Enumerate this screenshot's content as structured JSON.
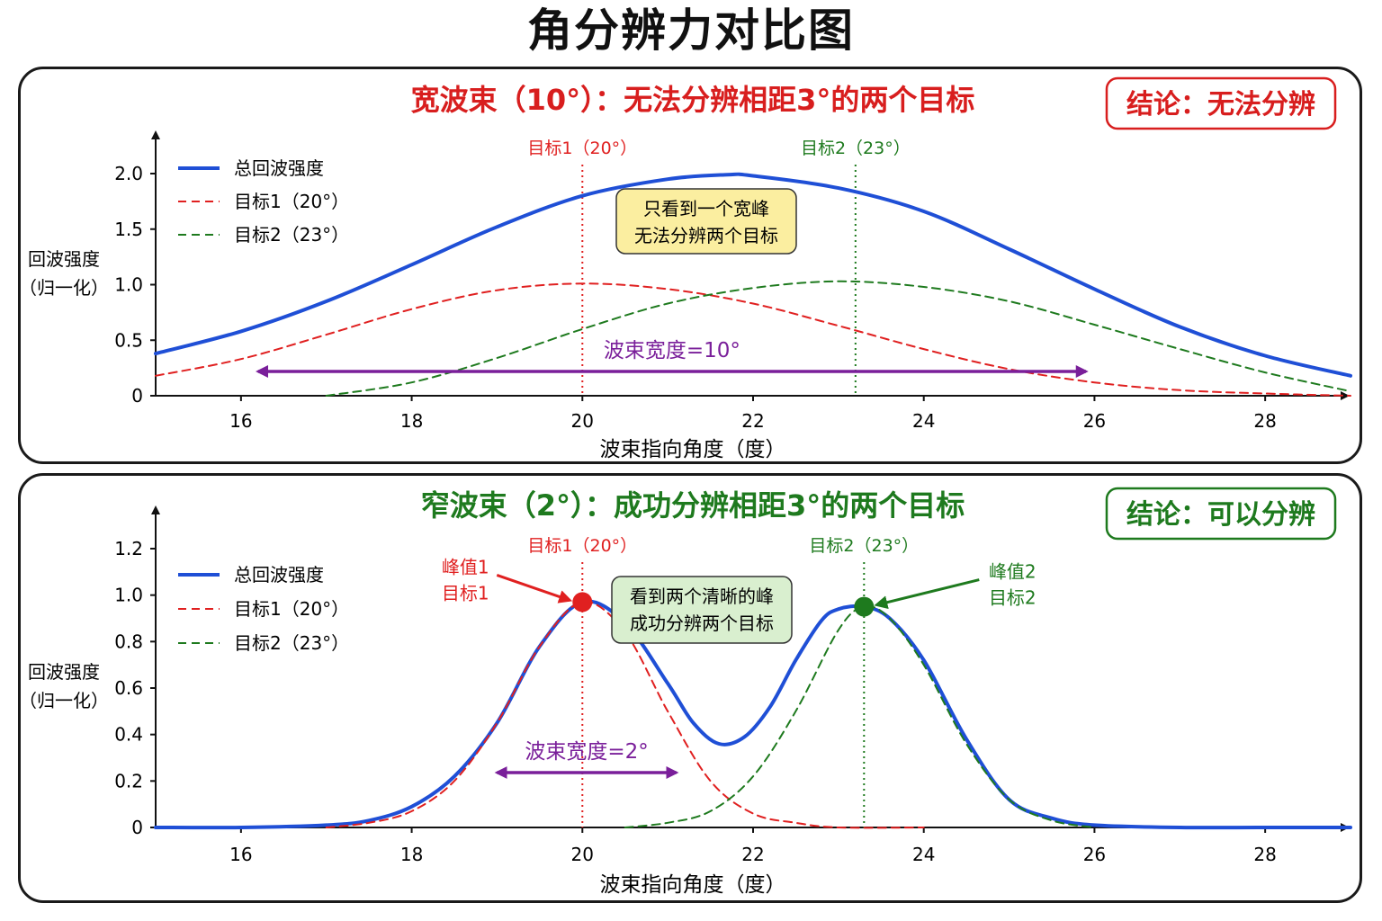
{
  "title": "角分辨力对比图",
  "colors": {
    "total": "#1f4fd6",
    "target1": "#e02020",
    "target2": "#1e7a1e",
    "beam": "#7a1f9a",
    "note_yellow": "#fbeea0",
    "note_green": "#d9efcf"
  },
  "panels": [
    {
      "id": "wide",
      "heading": "宽波束（10°）：无法分辨相距3°的两个目标",
      "heading_color": "#d81e1e",
      "conclusion": "结论：无法分辨",
      "conclusion_color": "#d81e1e",
      "marker1": "目标1（20°）",
      "marker2": "目标2（23°）",
      "note_lines": [
        "只看到一个宽峰",
        "无法分辨两个目标"
      ],
      "note_color": "#fbeea0",
      "beam_label": "波束宽度=10°",
      "peak_labels": [],
      "chart_data": {
        "type": "line",
        "xlabel": "波束指向角度（度）",
        "ylabel": "回波强度（归一化）",
        "xlim": [
          15,
          29
        ],
        "ylim": [
          0,
          2.0
        ],
        "xticks": [
          16,
          18,
          20,
          22,
          24,
          26,
          28
        ],
        "yticks": [
          0,
          0.5,
          1.0,
          1.5,
          2.0
        ],
        "ytick_labels": [
          "0",
          "0.5",
          "1.0",
          "1.5",
          "2.0"
        ],
        "target_lines": [
          20,
          23.2
        ],
        "beam_span": [
          16.2,
          25.9
        ],
        "legend_position": "top-left",
        "series": [
          {
            "name": "总回波强度",
            "style": "solid",
            "x": [
              15,
              16,
              17,
              18,
              19,
              20,
              21,
              21.7,
              22,
              23,
              24,
              25,
              26,
              27,
              28,
              29
            ],
            "y": [
              0.38,
              0.58,
              0.85,
              1.18,
              1.52,
              1.8,
              1.95,
              1.99,
              1.98,
              1.87,
              1.66,
              1.32,
              0.96,
              0.62,
              0.36,
              0.18
            ]
          },
          {
            "name": "目标1（20°）",
            "style": "dashed",
            "x": [
              15,
              16,
              17,
              18,
              19,
              20,
              21,
              22,
              23,
              24,
              25,
              26,
              27,
              28,
              29
            ],
            "y": [
              0.18,
              0.33,
              0.55,
              0.78,
              0.95,
              1.01,
              0.96,
              0.83,
              0.63,
              0.42,
              0.24,
              0.12,
              0.05,
              0.02,
              0.0
            ]
          },
          {
            "name": "目标2（23°）",
            "style": "dashed",
            "x": [
              17,
              18,
              19,
              20,
              21,
              22,
              23,
              24,
              25,
              26,
              27,
              28,
              29
            ],
            "y": [
              0.0,
              0.12,
              0.34,
              0.6,
              0.83,
              0.97,
              1.03,
              0.98,
              0.85,
              0.64,
              0.42,
              0.21,
              0.04
            ]
          }
        ]
      }
    },
    {
      "id": "narrow",
      "heading": "窄波束（2°）：成功分辨相距3°的两个目标",
      "heading_color": "#1e7a1e",
      "conclusion": "结论：可以分辨",
      "conclusion_color": "#1e7a1e",
      "marker1": "目标1（20°）",
      "marker2": "目标2（23°）",
      "note_lines": [
        "看到两个清晰的峰",
        "成功分辨两个目标"
      ],
      "note_color": "#d9efcf",
      "beam_label": "波束宽度=2°",
      "peak_labels": [
        {
          "lines": [
            "峰值1",
            "目标1"
          ],
          "color": "#e02020",
          "x": 20,
          "y": 0.97
        },
        {
          "lines": [
            "峰值2",
            "目标2"
          ],
          "color": "#1e7a1e",
          "x": 23.3,
          "y": 0.95
        }
      ],
      "chart_data": {
        "type": "line",
        "xlabel": "波束指向角度（度）",
        "ylabel": "回波强度（归一化）",
        "xlim": [
          15,
          29
        ],
        "ylim": [
          0,
          1.2
        ],
        "xticks": [
          16,
          18,
          20,
          22,
          24,
          26,
          28
        ],
        "yticks": [
          0,
          0.2,
          0.4,
          0.6,
          0.8,
          1.0,
          1.2
        ],
        "ytick_labels": [
          "0",
          "0.2",
          "0.4",
          "0.6",
          "0.8",
          "1.0",
          "1.2"
        ],
        "target_lines": [
          20,
          23.3
        ],
        "beam_span": [
          19.0,
          21.1
        ],
        "legend_position": "top-left",
        "series": [
          {
            "name": "总回波强度",
            "style": "solid",
            "x": [
              15,
              16,
              17,
              17.5,
              18,
              18.5,
              19,
              19.5,
              20,
              20.5,
              21,
              21.3,
              21.6,
              21.9,
              22.2,
              22.5,
              22.8,
              23.0,
              23.3,
              23.6,
              24,
              24.5,
              25,
              25.5,
              26,
              27,
              28,
              29
            ],
            "y": [
              0.0,
              0.0,
              0.01,
              0.03,
              0.09,
              0.22,
              0.45,
              0.78,
              0.97,
              0.88,
              0.62,
              0.45,
              0.36,
              0.39,
              0.52,
              0.72,
              0.89,
              0.94,
              0.95,
              0.9,
              0.72,
              0.38,
              0.12,
              0.04,
              0.01,
              0.0,
              0.0,
              0.0
            ]
          },
          {
            "name": "目标1（20°）",
            "style": "dashed",
            "x": [
              17,
              17.5,
              18,
              18.5,
              19,
              19.5,
              20,
              20.5,
              21,
              21.5,
              22,
              22.5,
              23,
              24
            ],
            "y": [
              0.0,
              0.02,
              0.07,
              0.2,
              0.45,
              0.78,
              0.97,
              0.84,
              0.5,
              0.2,
              0.06,
              0.02,
              0.0,
              0.0
            ]
          },
          {
            "name": "目标2（23°）",
            "style": "dashed",
            "x": [
              20.5,
              21,
              21.5,
              22,
              22.5,
              23,
              23.3,
              23.6,
              24,
              24.5,
              25,
              25.5,
              26
            ],
            "y": [
              0.0,
              0.02,
              0.07,
              0.22,
              0.5,
              0.85,
              0.95,
              0.9,
              0.7,
              0.36,
              0.12,
              0.03,
              0.0
            ]
          }
        ]
      }
    }
  ]
}
